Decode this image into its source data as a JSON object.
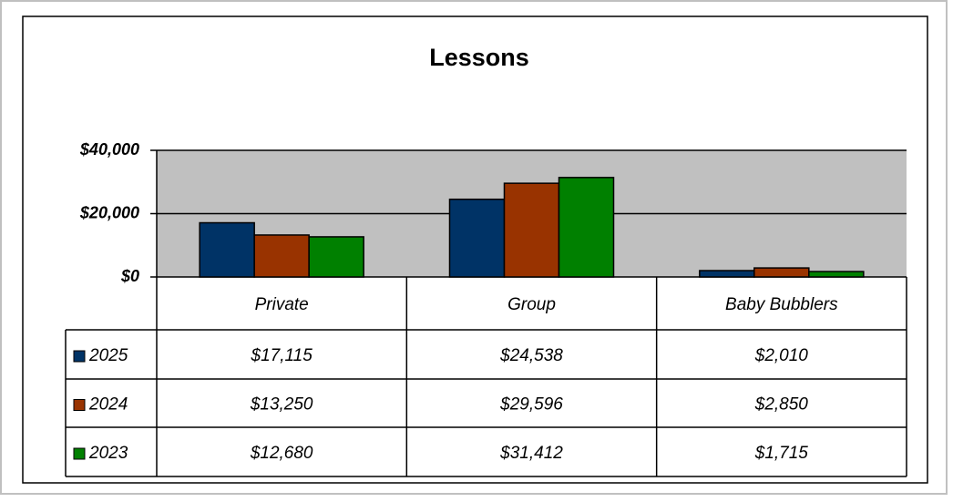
{
  "chart_data": {
    "type": "bar",
    "title": "Lessons",
    "categories": [
      "Private",
      "Group",
      "Baby Bubblers"
    ],
    "series": [
      {
        "name": "2025",
        "color": "#003366",
        "values": [
          17115,
          24538,
          2010
        ],
        "value_labels": [
          "$17,115",
          "$24,538",
          "$2,010"
        ]
      },
      {
        "name": "2024",
        "color": "#993300",
        "values": [
          13250,
          29596,
          2850
        ],
        "value_labels": [
          "$13,250",
          "$29,596",
          "$2,850"
        ]
      },
      {
        "name": "2023",
        "color": "#008000",
        "values": [
          12680,
          31412,
          1715
        ],
        "value_labels": [
          "$12,680",
          "$31,412",
          "$1,715"
        ]
      }
    ],
    "ylim": [
      0,
      40000
    ],
    "yticks": [
      {
        "value": 0,
        "label": "$0"
      },
      {
        "value": 20000,
        "label": "$20,000"
      },
      {
        "value": 40000,
        "label": "$40,000"
      }
    ],
    "grid": true
  }
}
